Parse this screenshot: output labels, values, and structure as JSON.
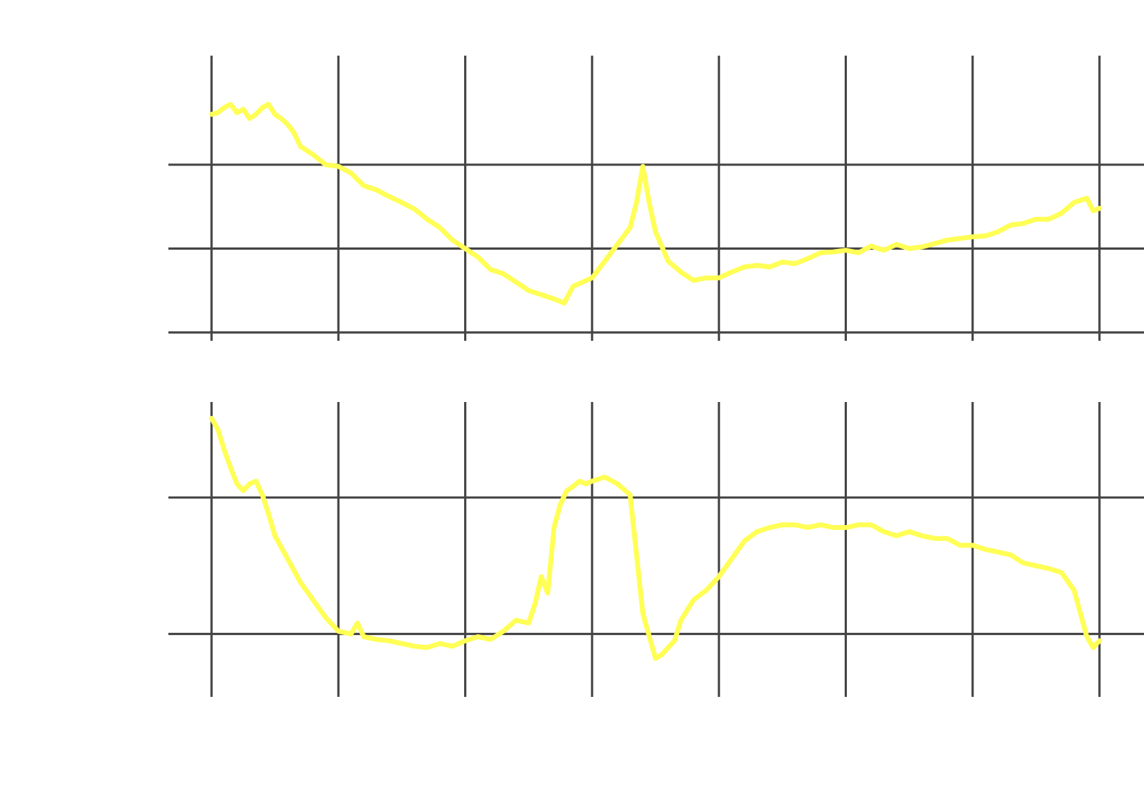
{
  "chart_data": [
    {
      "type": "line",
      "title": "",
      "xlabel": "",
      "ylabel": "",
      "grid": true,
      "legend": "none",
      "xlim": [
        0,
        7
      ],
      "ylim": [
        0,
        3.3
      ],
      "xticks": [
        0,
        1,
        2,
        3,
        4,
        5,
        6,
        7
      ],
      "yticks": [
        0,
        1,
        2
      ],
      "color": "#ffff55",
      "series": [
        {
          "x": [
            0,
            0.05,
            0.1,
            0.15,
            0.2,
            0.25,
            0.3,
            0.35,
            0.4,
            0.45,
            0.5,
            0.55,
            0.6,
            0.65,
            0.7,
            0.8,
            0.9,
            1.0,
            1.1,
            1.2,
            1.3,
            1.4,
            1.5,
            1.6,
            1.7,
            1.8,
            1.9,
            2.0,
            2.1,
            2.2,
            2.3,
            2.4,
            2.5,
            2.6,
            2.7,
            2.78,
            2.85,
            3.0,
            3.1,
            3.2,
            3.3,
            3.35,
            3.4,
            3.45,
            3.5,
            3.6,
            3.7,
            3.8,
            3.9,
            4.0,
            4.1,
            4.2,
            4.3,
            4.4,
            4.5,
            4.6,
            4.7,
            4.8,
            4.9,
            5.0,
            5.1,
            5.2,
            5.3,
            5.4,
            5.5,
            5.6,
            5.7,
            5.8,
            5.9,
            6.0,
            6.1,
            6.2,
            6.3,
            6.4,
            6.5,
            6.6,
            6.7,
            6.8,
            6.9,
            6.95,
            7.0
          ],
          "y": [
            2.6,
            2.62,
            2.68,
            2.72,
            2.62,
            2.66,
            2.55,
            2.6,
            2.68,
            2.72,
            2.6,
            2.55,
            2.48,
            2.38,
            2.22,
            2.12,
            2.0,
            1.98,
            1.9,
            1.75,
            1.7,
            1.62,
            1.55,
            1.47,
            1.35,
            1.25,
            1.1,
            1.0,
            0.9,
            0.75,
            0.7,
            0.6,
            0.5,
            0.45,
            0.4,
            0.35,
            0.55,
            0.65,
            0.85,
            1.05,
            1.25,
            1.55,
            1.98,
            1.55,
            1.2,
            0.85,
            0.72,
            0.62,
            0.65,
            0.65,
            0.72,
            0.78,
            0.8,
            0.78,
            0.84,
            0.82,
            0.88,
            0.95,
            0.96,
            0.98,
            0.95,
            1.03,
            0.98,
            1.05,
            1.0,
            1.02,
            1.06,
            1.1,
            1.12,
            1.14,
            1.15,
            1.2,
            1.28,
            1.3,
            1.35,
            1.35,
            1.42,
            1.55,
            1.6,
            1.45,
            1.48
          ]
        }
      ]
    },
    {
      "type": "line",
      "title": "",
      "xlabel": "",
      "ylabel": "",
      "grid": true,
      "legend": "none",
      "xlim": [
        0,
        7
      ],
      "ylim": [
        0,
        2.1
      ],
      "xticks": [
        0,
        1,
        2,
        3,
        4,
        5,
        6,
        7
      ],
      "yticks": [
        0.4,
        1.4
      ],
      "color": "#ffff55",
      "series": [
        {
          "x": [
            0,
            0.05,
            0.1,
            0.15,
            0.2,
            0.25,
            0.3,
            0.35,
            0.4,
            0.45,
            0.5,
            0.6,
            0.7,
            0.8,
            0.9,
            1.0,
            1.1,
            1.15,
            1.2,
            1.3,
            1.4,
            1.5,
            1.6,
            1.7,
            1.8,
            1.9,
            2.0,
            2.1,
            2.2,
            2.3,
            2.4,
            2.5,
            2.55,
            2.6,
            2.65,
            2.7,
            2.75,
            2.8,
            2.85,
            2.9,
            2.95,
            3.0,
            3.1,
            3.2,
            3.3,
            3.4,
            3.5,
            3.55,
            3.6,
            3.65,
            3.7,
            3.8,
            3.9,
            4.0,
            4.1,
            4.2,
            4.3,
            4.4,
            4.5,
            4.6,
            4.7,
            4.8,
            4.9,
            5.0,
            5.1,
            5.2,
            5.3,
            5.4,
            5.5,
            5.6,
            5.7,
            5.8,
            5.9,
            6.0,
            6.1,
            6.2,
            6.3,
            6.4,
            6.5,
            6.6,
            6.7,
            6.8,
            6.85,
            6.9,
            6.95,
            7.0
          ],
          "y": [
            1.98,
            1.9,
            1.75,
            1.62,
            1.5,
            1.45,
            1.5,
            1.52,
            1.42,
            1.28,
            1.12,
            0.95,
            0.78,
            0.65,
            0.52,
            0.42,
            0.4,
            0.48,
            0.38,
            0.36,
            0.35,
            0.33,
            0.31,
            0.3,
            0.33,
            0.31,
            0.35,
            0.38,
            0.36,
            0.42,
            0.5,
            0.48,
            0.62,
            0.82,
            0.7,
            1.18,
            1.35,
            1.45,
            1.48,
            1.52,
            1.5,
            1.52,
            1.55,
            1.5,
            1.42,
            0.55,
            0.22,
            0.25,
            0.3,
            0.35,
            0.5,
            0.65,
            0.72,
            0.82,
            0.95,
            1.08,
            1.15,
            1.18,
            1.2,
            1.2,
            1.18,
            1.2,
            1.18,
            1.18,
            1.2,
            1.2,
            1.15,
            1.12,
            1.15,
            1.12,
            1.1,
            1.1,
            1.05,
            1.05,
            1.02,
            1.0,
            0.98,
            0.92,
            0.9,
            0.88,
            0.85,
            0.72,
            0.55,
            0.38,
            0.3,
            0.35
          ]
        }
      ]
    }
  ]
}
